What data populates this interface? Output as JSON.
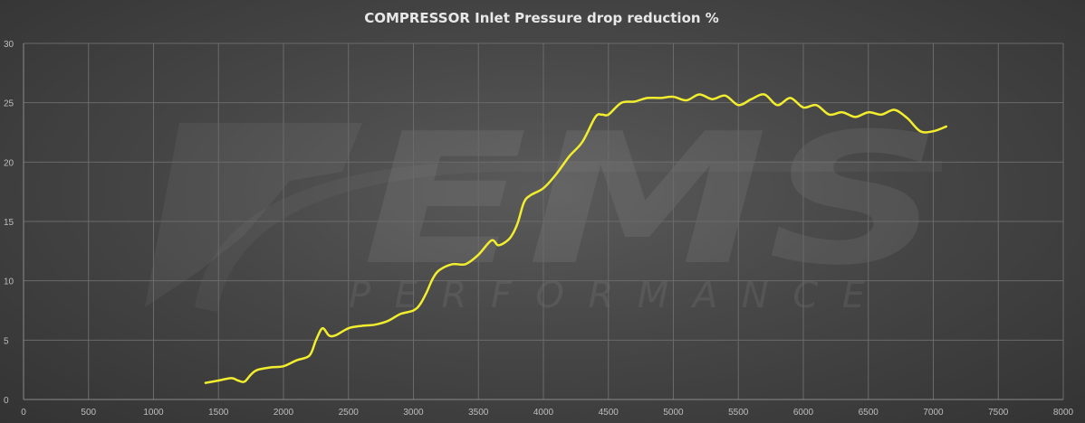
{
  "watermark": {
    "logo_text": "EMS",
    "subtitle": "PERFORMANCE"
  },
  "chart_data": {
    "type": "line",
    "title": "COMPRESSOR Inlet Pressure drop reduction %",
    "xlabel": "",
    "ylabel": "",
    "xlim": [
      0,
      8000
    ],
    "ylim": [
      0,
      30
    ],
    "x_ticks": [
      0,
      500,
      1000,
      1500,
      2000,
      2500,
      3000,
      3500,
      4000,
      4500,
      5000,
      5500,
      6000,
      6500,
      7000,
      7500,
      8000
    ],
    "y_ticks": [
      0,
      5,
      10,
      15,
      20,
      25,
      30
    ],
    "grid": true,
    "legend": "none",
    "line_color": "#f2ee2e",
    "series": [
      {
        "x": [
          1400,
          1500,
          1600,
          1650,
          1700,
          1750,
          1800,
          1900,
          2000,
          2100,
          2200,
          2250,
          2300,
          2350,
          2400,
          2500,
          2600,
          2700,
          2800,
          2900,
          3000,
          3050,
          3100,
          3150,
          3200,
          3300,
          3400,
          3500,
          3600,
          3650,
          3700,
          3750,
          3800,
          3850,
          3900,
          4000,
          4100,
          4200,
          4300,
          4400,
          4450,
          4500,
          4600,
          4700,
          4800,
          4900,
          5000,
          5100,
          5200,
          5300,
          5400,
          5500,
          5600,
          5700,
          5800,
          5900,
          6000,
          6100,
          6200,
          6300,
          6400,
          6500,
          6600,
          6700,
          6800,
          6900,
          7000,
          7100
        ],
        "y": [
          1.4,
          1.6,
          1.8,
          1.6,
          1.5,
          2.1,
          2.5,
          2.7,
          2.8,
          3.3,
          3.7,
          5.0,
          6.0,
          5.4,
          5.4,
          6.0,
          6.2,
          6.3,
          6.6,
          7.2,
          7.5,
          8.0,
          9.0,
          10.2,
          10.9,
          11.4,
          11.4,
          12.2,
          13.4,
          13.0,
          13.2,
          13.7,
          14.8,
          16.6,
          17.2,
          17.8,
          19.0,
          20.5,
          21.7,
          23.8,
          24.0,
          24.0,
          25.0,
          25.1,
          25.4,
          25.4,
          25.5,
          25.2,
          25.7,
          25.3,
          25.6,
          24.8,
          25.3,
          25.7,
          24.8,
          25.4,
          24.6,
          24.8,
          24.0,
          24.2,
          23.8,
          24.2,
          24.0,
          24.4,
          23.7,
          22.6,
          22.6,
          23.0
        ]
      }
    ]
  }
}
